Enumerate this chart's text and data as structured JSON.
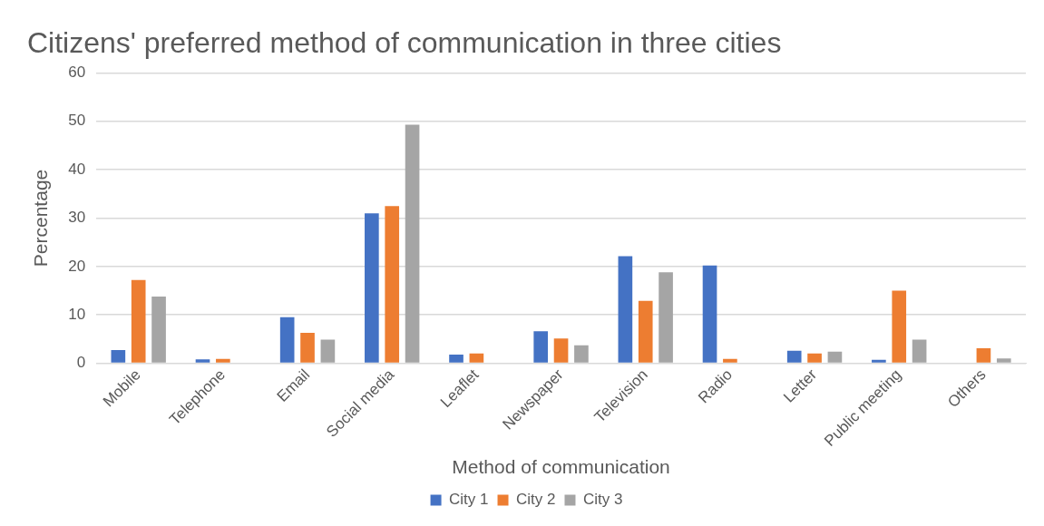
{
  "chart_data": {
    "type": "bar",
    "title": "Citizens' preferred method of communication in three cities",
    "xlabel": "Method of communication",
    "ylabel": "Percentage",
    "categories": [
      "Mobile",
      "Telephone",
      "Email",
      "Social media",
      "Leaflet",
      "Newspaper",
      "Television",
      "Radio",
      "Letter",
      "Public meeting",
      "Others"
    ],
    "series": [
      {
        "name": "City 1",
        "color": "#4472c4",
        "values": [
          2.7,
          0.8,
          9.5,
          31.0,
          1.8,
          6.6,
          22.1,
          20.2,
          2.6,
          0.7,
          0
        ]
      },
      {
        "name": "City 2",
        "color": "#ed7d31",
        "values": [
          17.2,
          0.9,
          6.3,
          32.5,
          2.0,
          5.1,
          12.9,
          0.9,
          2.0,
          15.0,
          3.1
        ]
      },
      {
        "name": "City 3",
        "color": "#a5a5a5",
        "values": [
          13.8,
          0,
          4.9,
          49.3,
          0,
          3.7,
          18.8,
          0,
          2.4,
          4.9,
          1.0
        ]
      }
    ],
    "ylim": [
      0,
      60
    ],
    "yticks": [
      0,
      10,
      20,
      30,
      40,
      50,
      60
    ],
    "grid": "y",
    "legend": "bottom"
  }
}
